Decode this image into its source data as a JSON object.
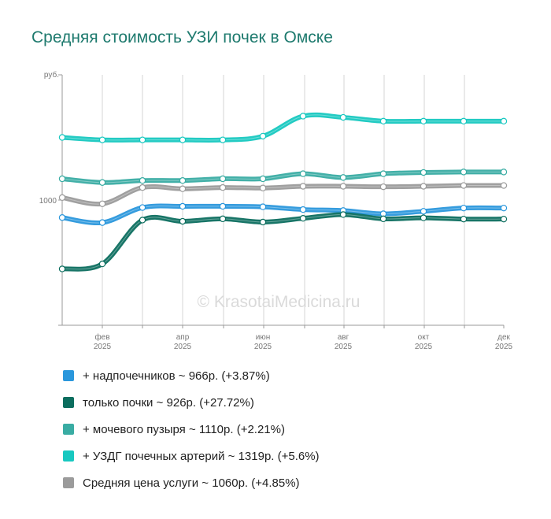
{
  "title": "Средняя стоимость УЗИ почек в Омске",
  "watermark": "© KrasotaiMedicina.ru",
  "chart_data": {
    "type": "line",
    "title": "Средняя стоимость УЗИ почек в Омске",
    "y_unit_label": "руб.",
    "y_tick_labels": [
      "1000"
    ],
    "ylim": [
      500,
      1500
    ],
    "x_months": [
      1,
      2,
      3,
      4,
      5,
      6,
      7,
      8,
      9,
      10,
      11,
      12
    ],
    "x_tick_labels": [
      {
        "month": 2,
        "name": "фев",
        "year": "2025"
      },
      {
        "month": 4,
        "name": "апр",
        "year": "2025"
      },
      {
        "month": 6,
        "name": "июн",
        "year": "2025"
      },
      {
        "month": 8,
        "name": "авг",
        "year": "2025"
      },
      {
        "month": 10,
        "name": "окт",
        "year": "2025"
      },
      {
        "month": 12,
        "name": "дек",
        "year": "2025"
      }
    ],
    "grid": true,
    "series": [
      {
        "name": "+ УЗДГ почечных артерий ~ 1319р. (+5.6%)",
        "color": "#17c8c0",
        "values": [
          1250,
          1240,
          1240,
          1240,
          1240,
          1255,
          1335,
          1330,
          1315,
          1315,
          1315,
          1315
        ]
      },
      {
        "name": "+ мочевого пузыря ~ 1110р. (+2.21%)",
        "color": "#39aca3",
        "values": [
          1085,
          1070,
          1078,
          1078,
          1085,
          1085,
          1105,
          1090,
          1105,
          1110,
          1112,
          1112
        ]
      },
      {
        "name": "Средняя цена услуги ~ 1060р. (+4.85%)",
        "color": "#9b9b9b",
        "values": [
          1010,
          985,
          1050,
          1045,
          1050,
          1048,
          1055,
          1055,
          1053,
          1055,
          1058,
          1058
        ]
      },
      {
        "name": "+ надпочечников ~ 966р. (+3.87%)",
        "color": "#2a97dc",
        "values": [
          930,
          910,
          970,
          975,
          975,
          973,
          962,
          958,
          945,
          955,
          968,
          968
        ]
      },
      {
        "name": "только почки ~ 926р. (+27.72%)",
        "color": "#0c6e5f",
        "values": [
          725,
          745,
          920,
          915,
          925,
          912,
          927,
          942,
          925,
          929,
          924,
          924
        ]
      }
    ],
    "legend_order": [
      3,
      4,
      1,
      0,
      2
    ]
  }
}
